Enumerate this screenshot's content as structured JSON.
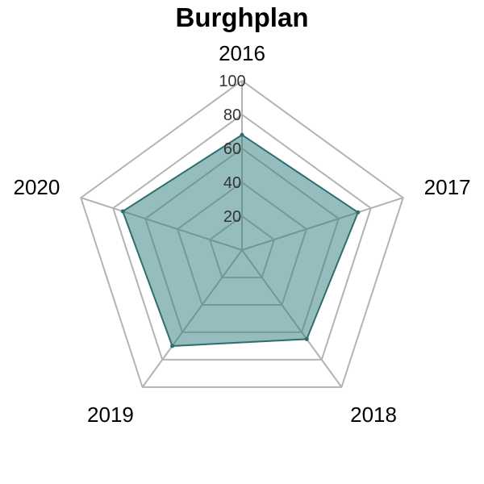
{
  "chart_data": {
    "type": "radar",
    "title": "Burghplan",
    "categories": [
      "2016",
      "2017",
      "2018",
      "2019",
      "2020"
    ],
    "series": [
      {
        "values": [
          68,
          72,
          65,
          70,
          74
        ]
      }
    ],
    "rlim": [
      0,
      100
    ],
    "rticks": [
      20,
      40,
      60,
      80,
      100
    ],
    "grid": true,
    "colors": {
      "fill": "#2e7b7b",
      "stroke": "#2e6e6e",
      "grid": "#b3b3b3",
      "inner_grid": "#7e9a9a"
    }
  }
}
